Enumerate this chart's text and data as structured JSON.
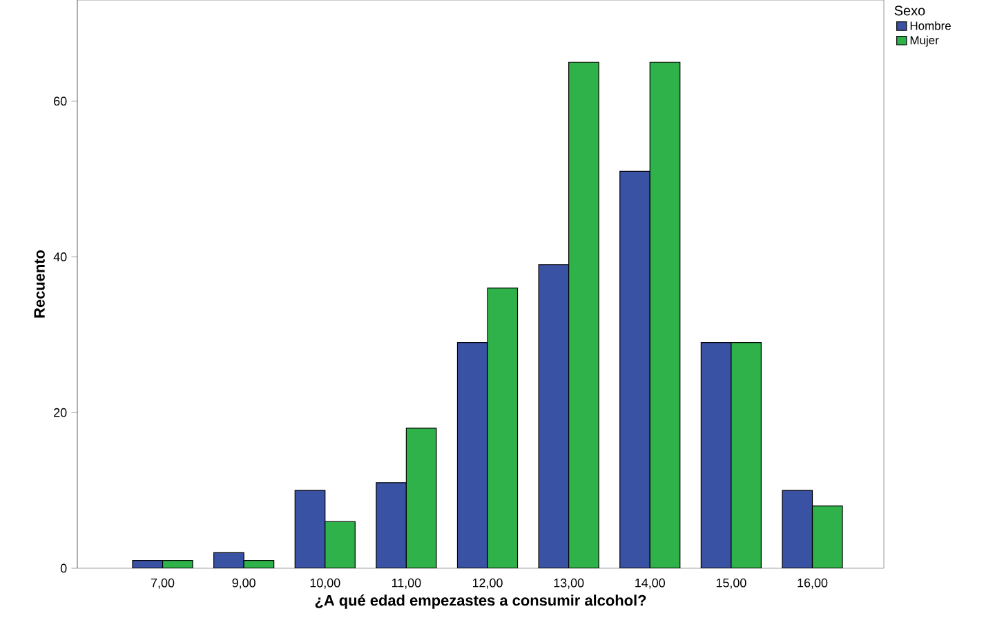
{
  "chart_data": {
    "type": "bar",
    "xlabel": "¿A qué edad empezastes a consumir alcohol?",
    "ylabel": "Recuento",
    "legend_title": "Sexo",
    "legend": "top right",
    "categories": [
      "7,00",
      "9,00",
      "10,00",
      "11,00",
      "12,00",
      "13,00",
      "14,00",
      "15,00",
      "16,00"
    ],
    "series": [
      {
        "name": "Hombre",
        "color": "#3a52a4",
        "values": [
          1,
          2,
          10,
          11,
          29,
          39,
          51,
          29,
          10
        ]
      },
      {
        "name": "Mujer",
        "color": "#2fb24a",
        "values": [
          1,
          1,
          6,
          18,
          36,
          65,
          65,
          29,
          8
        ]
      }
    ],
    "ylim": [
      0,
      73
    ],
    "yticks": [
      0,
      20,
      40,
      60
    ],
    "grid": false
  }
}
